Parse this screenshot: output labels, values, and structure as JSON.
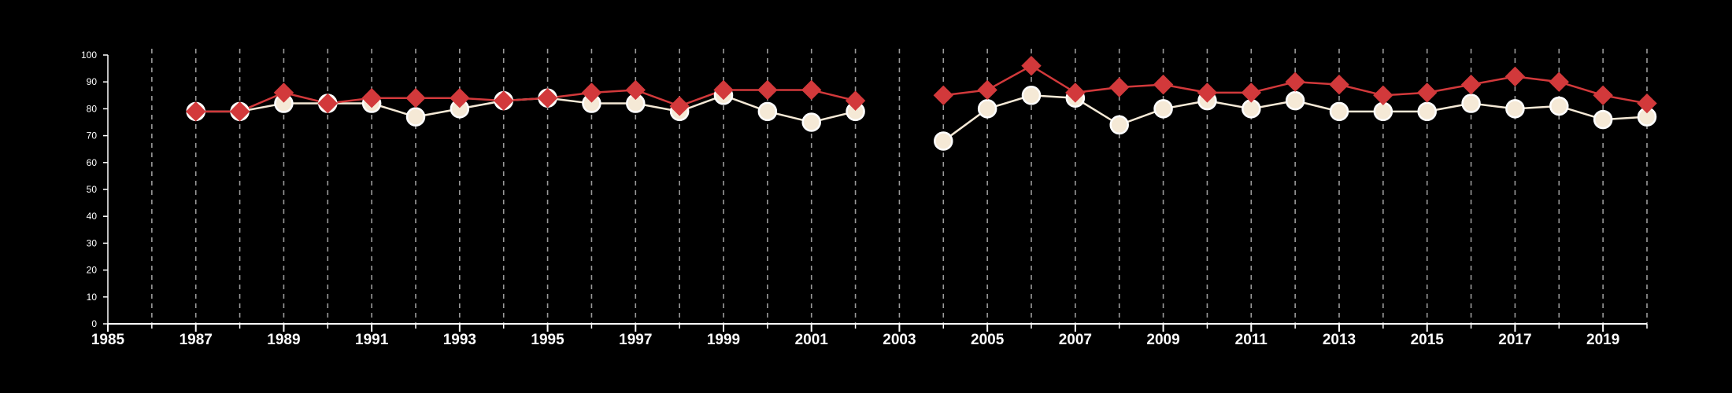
{
  "colors": {
    "background": "#000000",
    "axis": "#ffffff",
    "gridline": "#9a9a9a",
    "series_red": "#d2393b",
    "series_cream": "#f5e9d6",
    "marker_edge": "#ffffff"
  },
  "chart_data": {
    "type": "line",
    "title": "",
    "xlabel": "",
    "ylabel": "",
    "xlim": [
      1985,
      2020
    ],
    "ylim": [
      0,
      100
    ],
    "x_ticks": [
      1985,
      1987,
      1989,
      1991,
      1993,
      1995,
      1997,
      1999,
      2001,
      2003,
      2005,
      2007,
      2009,
      2011,
      2013,
      2015,
      2017,
      2019
    ],
    "x_tick_labels": [
      "1985",
      "1987",
      "1989",
      "1991",
      "1993",
      "1995",
      "1997",
      "1999",
      "2001",
      "2003",
      "2005",
      "2007",
      "2009",
      "2011",
      "2013",
      "2015",
      "2017",
      "2019"
    ],
    "y_ticks": [
      0,
      10,
      20,
      30,
      40,
      50,
      60,
      70,
      80,
      90,
      100
    ],
    "y_tick_labels": [
      "0",
      "10",
      "20",
      "30",
      "40",
      "50",
      "60",
      "70",
      "80",
      "90",
      "100"
    ],
    "vertical_gridlines": "dashed, every year 1986–2020",
    "x": [
      1987,
      1988,
      1989,
      1990,
      1991,
      1992,
      1993,
      1994,
      1995,
      1996,
      1997,
      1998,
      1999,
      2000,
      2001,
      2002,
      2003,
      2004,
      2005,
      2006,
      2007,
      2008,
      2009,
      2010,
      2011,
      2012,
      2013,
      2014,
      2015,
      2016,
      2017,
      2018,
      2019,
      2020
    ],
    "series": [
      {
        "marker": "circle",
        "color": "#f5e9d6",
        "values": [
          79,
          79,
          82,
          82,
          82,
          77,
          80,
          83,
          84,
          82,
          82,
          79,
          85,
          79,
          75,
          79,
          null,
          68,
          80,
          85,
          84,
          74,
          80,
          83,
          80,
          83,
          79,
          79,
          79,
          82,
          80,
          81,
          76,
          77
        ]
      },
      {
        "marker": "diamond",
        "color": "#d2393b",
        "values": [
          79,
          79,
          86,
          82,
          84,
          84,
          84,
          83,
          84,
          86,
          87,
          81,
          87,
          87,
          87,
          83,
          null,
          85,
          87,
          96,
          86,
          88,
          89,
          86,
          86,
          90,
          89,
          85,
          86,
          89,
          92,
          90,
          85,
          82
        ]
      }
    ]
  }
}
